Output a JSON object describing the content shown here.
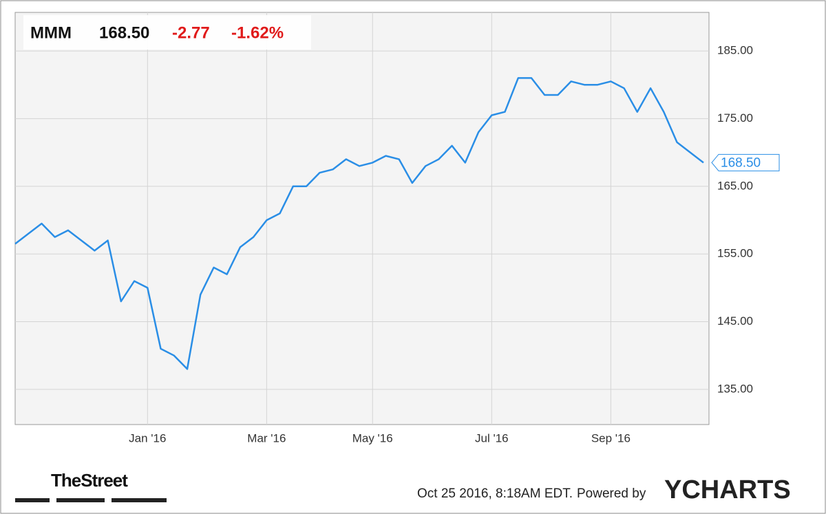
{
  "chart_data": {
    "type": "line",
    "header": {
      "ticker": "MMM",
      "price": "168.50",
      "change": "-2.77",
      "change_pct": "-1.62%"
    },
    "categories": [
      null,
      null,
      null,
      null,
      null,
      null,
      null,
      null,
      null,
      null,
      "Jan '16",
      null,
      null,
      null,
      null,
      null,
      null,
      null,
      null,
      "Mar '16",
      null,
      null,
      null,
      null,
      null,
      null,
      null,
      "May '16",
      null,
      null,
      null,
      null,
      null,
      null,
      null,
      null,
      "Jul '16",
      null,
      null,
      null,
      null,
      null,
      null,
      null,
      null,
      "Sep '16",
      null,
      null,
      null,
      null,
      null,
      null,
      null
    ],
    "series": [
      {
        "name": "MMM",
        "color": "#2a8ee6",
        "values": [
          156.5,
          158,
          159.5,
          157.5,
          158.5,
          157,
          155.5,
          157,
          148,
          151,
          150,
          141,
          140,
          138,
          149,
          153,
          152,
          156,
          157.5,
          160,
          161,
          165,
          165,
          167,
          167.5,
          169,
          168,
          168.5,
          169.5,
          169,
          165.5,
          168,
          169,
          171,
          168.5,
          173,
          175.5,
          176,
          181,
          181,
          178.5,
          178.5,
          180.5,
          180,
          180,
          180.5,
          179.5,
          176,
          179.5,
          176,
          171.5,
          170,
          168.5
        ]
      }
    ],
    "ylim": [
      129.8,
      190.7
    ],
    "yticks": [
      {
        "value": 135,
        "label": "135.00"
      },
      {
        "value": 145,
        "label": "145.00"
      },
      {
        "value": 155,
        "label": "155.00"
      },
      {
        "value": 165,
        "label": "165.00"
      },
      {
        "value": 175,
        "label": "175.00"
      },
      {
        "value": 185,
        "label": "185.00"
      }
    ],
    "grid": true,
    "footer": {
      "brand": "TheStreet",
      "timestamp": "Oct 25 2016, 8:18AM EDT.",
      "powered": "Powered by",
      "provider": "YCHARTS"
    }
  }
}
